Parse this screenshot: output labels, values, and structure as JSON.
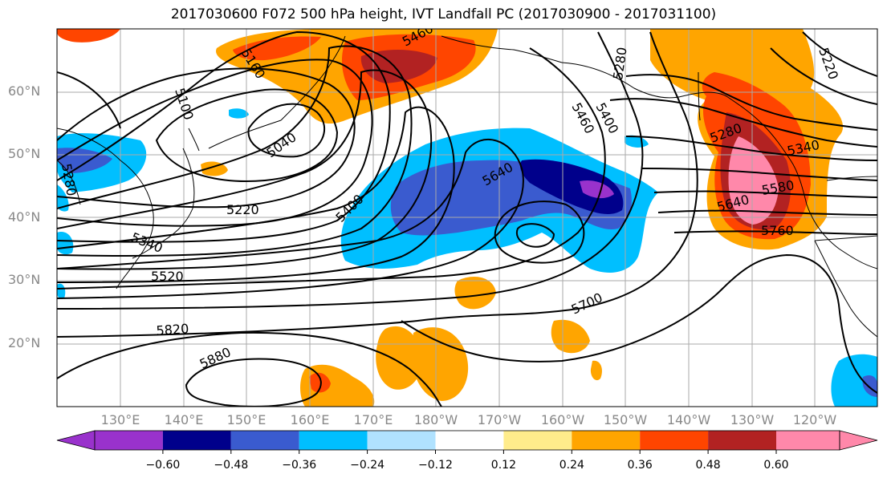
{
  "title": "2017030600 F072 500 hPa height, IVT Landfall PC (2017030900 - 2017031100)",
  "latitude_labels": [
    "60°N",
    "50°N",
    "40°N",
    "30°N",
    "20°N"
  ],
  "longitude_labels": [
    "130°E",
    "140°E",
    "150°E",
    "160°E",
    "170°E",
    "180°W",
    "170°W",
    "160°W",
    "150°W",
    "140°W",
    "130°W",
    "120°W"
  ],
  "contour_labels": [
    "5460",
    "5160",
    "5100",
    "5040",
    "5280",
    "5220",
    "5340",
    "5400",
    "5520",
    "5640",
    "5460",
    "5400",
    "5280",
    "5700",
    "5820",
    "5880",
    "5280",
    "5340",
    "5580",
    "5640",
    "5760",
    "5220"
  ],
  "colorbar": {
    "tick_labels": [
      "−0.60",
      "−0.48",
      "−0.36",
      "−0.24",
      "−0.12",
      "0.12",
      "0.24",
      "0.36",
      "0.48",
      "0.60"
    ],
    "colors": [
      "#9932cc",
      "#00008b",
      "#3a5bcf",
      "#00bfff",
      "#b0e2ff",
      "#ffffff",
      "#ffec8b",
      "#ffa500",
      "#ff4500",
      "#b22222",
      "#ff88aa"
    ]
  },
  "shading_colors": {
    "neg_light": "#00bfff",
    "neg_mid": "#3a5bcf",
    "neg_dark": "#00008b",
    "neg_min": "#9932cc",
    "pos_light": "#ffec8b",
    "pos_mid": "#ffa500",
    "pos_high": "#ff4500",
    "pos_dark": "#b22222",
    "pos_max": "#ff88aa"
  }
}
